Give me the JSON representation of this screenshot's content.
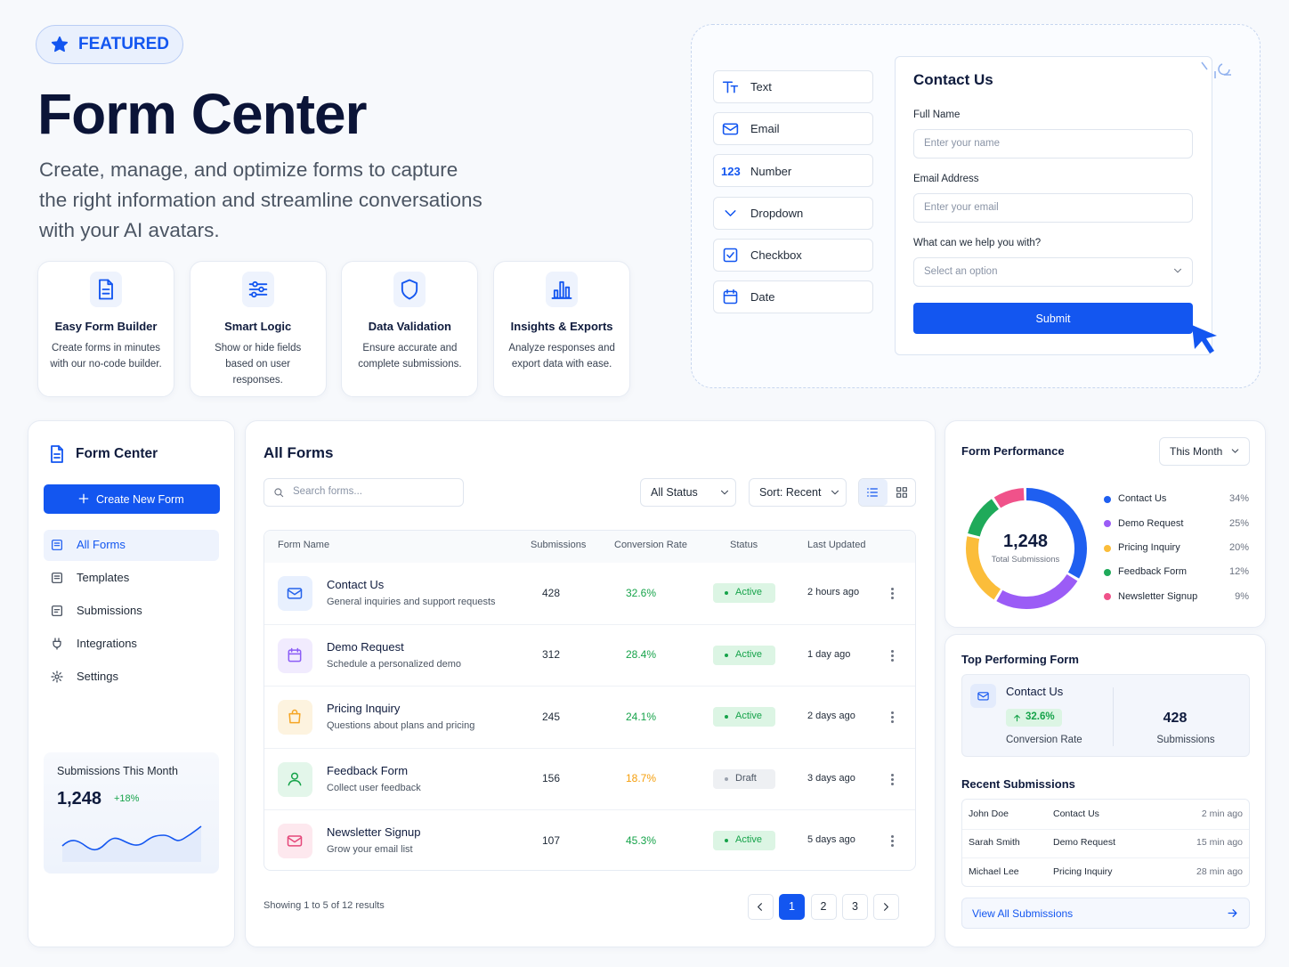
{
  "badge": "FEATURED",
  "hero": {
    "title": "Form Center",
    "subtitle": "Create, manage, and optimize forms to capture the right information and streamline conversations with your AI avatars."
  },
  "features": [
    {
      "title": "Easy Form Builder",
      "desc": "Create forms in minutes with our no-code builder."
    },
    {
      "title": "Smart Logic",
      "desc": "Show or hide fields based on user responses."
    },
    {
      "title": "Data Validation",
      "desc": "Ensure accurate and complete submissions."
    },
    {
      "title": "Insights & Exports",
      "desc": "Analyze responses and export data with ease."
    }
  ],
  "field_types": [
    "Text",
    "Email",
    "Number",
    "Dropdown",
    "Checkbox",
    "Date"
  ],
  "number_icon": "123",
  "preview": {
    "title": "Contact Us",
    "fields": [
      {
        "label": "Full Name",
        "placeholder": "Enter your name"
      },
      {
        "label": "Email Address",
        "placeholder": "Enter your email"
      },
      {
        "label": "What can we help you with?",
        "placeholder": "Select an option"
      }
    ],
    "submit": "Submit"
  },
  "sidebar": {
    "title": "Form Center",
    "create": "Create New Form",
    "nav": [
      "All Forms",
      "Templates",
      "Submissions",
      "Integrations",
      "Settings"
    ],
    "stats": {
      "label": "Submissions This Month",
      "value": "1,248",
      "change": "+18%"
    }
  },
  "forms": {
    "title": "All Forms",
    "search": "Search forms...",
    "status_filter": "All Status",
    "sort": "Sort: Recent",
    "columns": [
      "Form Name",
      "Submissions",
      "Conversion Rate",
      "Status",
      "Last Updated"
    ],
    "rows": [
      {
        "name": "Contact Us",
        "desc": "General inquiries and support requests",
        "submissions": 428,
        "conversion": "32.6%",
        "status": "Active",
        "updated": "2 hours ago"
      },
      {
        "name": "Demo Request",
        "desc": "Schedule a personalized demo",
        "submissions": 312,
        "conversion": "28.4%",
        "status": "Active",
        "updated": "1 day ago"
      },
      {
        "name": "Pricing Inquiry",
        "desc": "Questions about plans and pricing",
        "submissions": 245,
        "conversion": "24.1%",
        "status": "Active",
        "updated": "2 days ago"
      },
      {
        "name": "Feedback Form",
        "desc": "Collect user feedback",
        "submissions": 156,
        "conversion": "18.7%",
        "status": "Draft",
        "updated": "3 days ago"
      },
      {
        "name": "Newsletter Signup",
        "desc": "Grow your email list",
        "submissions": 107,
        "conversion": "45.3%",
        "status": "Active",
        "updated": "5 days ago"
      }
    ],
    "footer": "Showing 1 to 5 of 12 results",
    "pages": [
      1,
      2,
      3
    ]
  },
  "performance": {
    "title": "Form Performance",
    "period": "This Month",
    "total": "1,248",
    "total_label": "Total Submissions",
    "segments": [
      {
        "name": "Contact Us",
        "color": "#1f5ff0",
        "value": 34,
        "value_label": "34%"
      },
      {
        "name": "Demo Request",
        "color": "#9b5cf6",
        "value": 25,
        "value_label": "25%"
      },
      {
        "name": "Pricing Inquiry",
        "color": "#fbbd3a",
        "value": 20,
        "value_label": "20%"
      },
      {
        "name": "Feedback Form",
        "color": "#1faa5a",
        "value": 12,
        "value_label": "12%"
      },
      {
        "name": "Newsletter Signup",
        "color": "#f0528a",
        "value": 9,
        "value_label": "9%"
      }
    ]
  },
  "top": {
    "title": "Top Performing Form",
    "name": "Contact Us",
    "change": "32.6%",
    "change_label": "Conversion Rate",
    "submissions": 428,
    "submissions_label": "Submissions"
  },
  "recent": {
    "title": "Recent Submissions",
    "rows": [
      [
        "John Doe",
        "Contact Us",
        "2 min ago"
      ],
      [
        "Sarah Smith",
        "Demo Request",
        "15 min ago"
      ],
      [
        "Michael Lee",
        "Pricing Inquiry",
        "28 min ago"
      ]
    ],
    "link": "View All Submissions"
  }
}
